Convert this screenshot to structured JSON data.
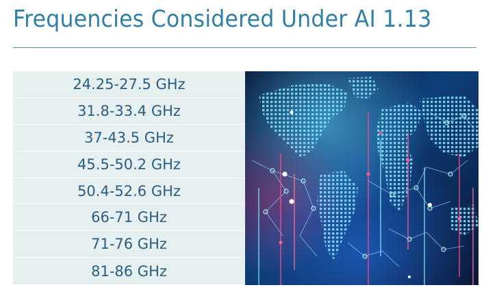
{
  "slide": {
    "title": "Frequencies Considered Under AI 1.13"
  },
  "frequency_table": {
    "rows": [
      {
        "label": "24.25-27.5 GHz"
      },
      {
        "label": "31.8-33.4 GHz"
      },
      {
        "label": "37-43.5 GHz"
      },
      {
        "label": "45.5-50.2 GHz"
      },
      {
        "label": "50.4-52.6 GHz"
      },
      {
        "label": "66-71 GHz"
      },
      {
        "label": "71-76 GHz"
      },
      {
        "label": "81-86 GHz"
      }
    ]
  },
  "image": {
    "description_icon": "world-map-network-image"
  }
}
